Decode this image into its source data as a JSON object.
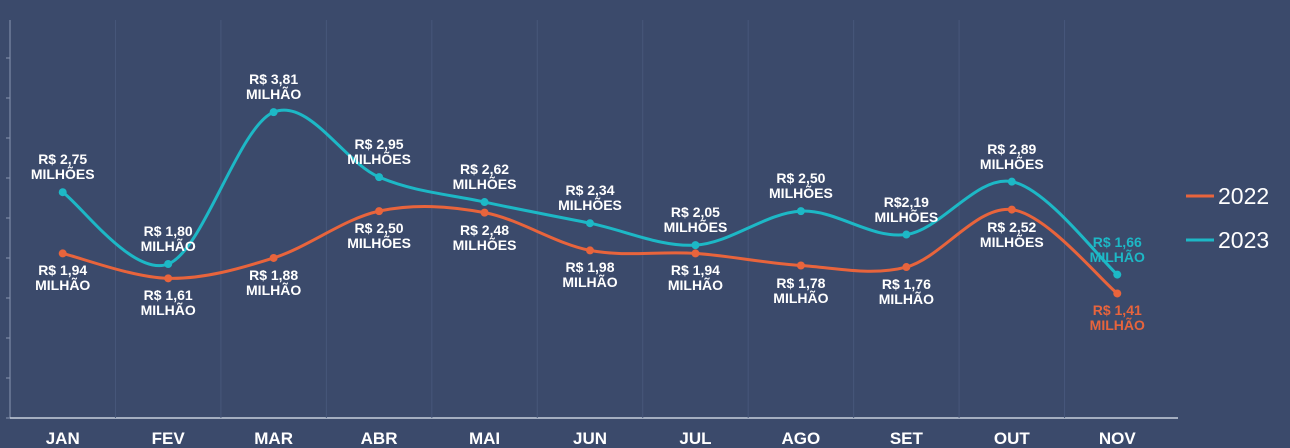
{
  "chart_data": {
    "type": "line",
    "categories": [
      "JAN",
      "FEV",
      "MAR",
      "ABR",
      "MAI",
      "JUN",
      "JUL",
      "AGO",
      "SET",
      "OUT",
      "NOV"
    ],
    "series": [
      {
        "name": "2022",
        "color": "#e8643c",
        "values": [
          1.94,
          1.61,
          1.88,
          2.5,
          2.48,
          1.98,
          1.94,
          1.78,
          1.76,
          2.52,
          1.41
        ],
        "value_labels": [
          "R$ 1,94\nMILHÃO",
          "R$ 1,61\nMILHÃO",
          "R$ 1,88\nMILHÃO",
          "R$ 2,50\nMILHÕES",
          "R$ 2,48\nMILHÕES",
          "R$ 1,98\nMILHÃO",
          "R$ 1,94\nMILHÃO",
          "R$ 1,78\nMILHÃO",
          "R$ 1,76\nMILHÃO",
          "R$ 2,52\nMILHÕES",
          "R$ 1,41\nMILHÃO"
        ]
      },
      {
        "name": "2023",
        "color": "#1db8c6",
        "values": [
          2.75,
          1.8,
          3.81,
          2.95,
          2.62,
          2.34,
          2.05,
          2.5,
          2.19,
          2.89,
          1.66
        ],
        "value_labels": [
          "R$ 2,75\nMILHÕES",
          "R$ 1,80\nMILHÃO",
          "R$ 3,81\nMILHÃO",
          "R$ 2,95\nMILHÕES",
          "R$ 2,62\nMILHÕES",
          "R$ 2,34\nMILHÕES",
          "R$ 2,05\nMILHÕES",
          "R$ 2,50\nMILHÕES",
          "R$2,19\nMILHÕES",
          "R$ 2,89\nMILHÕES",
          "R$ 1,66\nMILHÃO"
        ]
      }
    ],
    "ylim": [
      0,
      4.5
    ],
    "legend": "right"
  }
}
